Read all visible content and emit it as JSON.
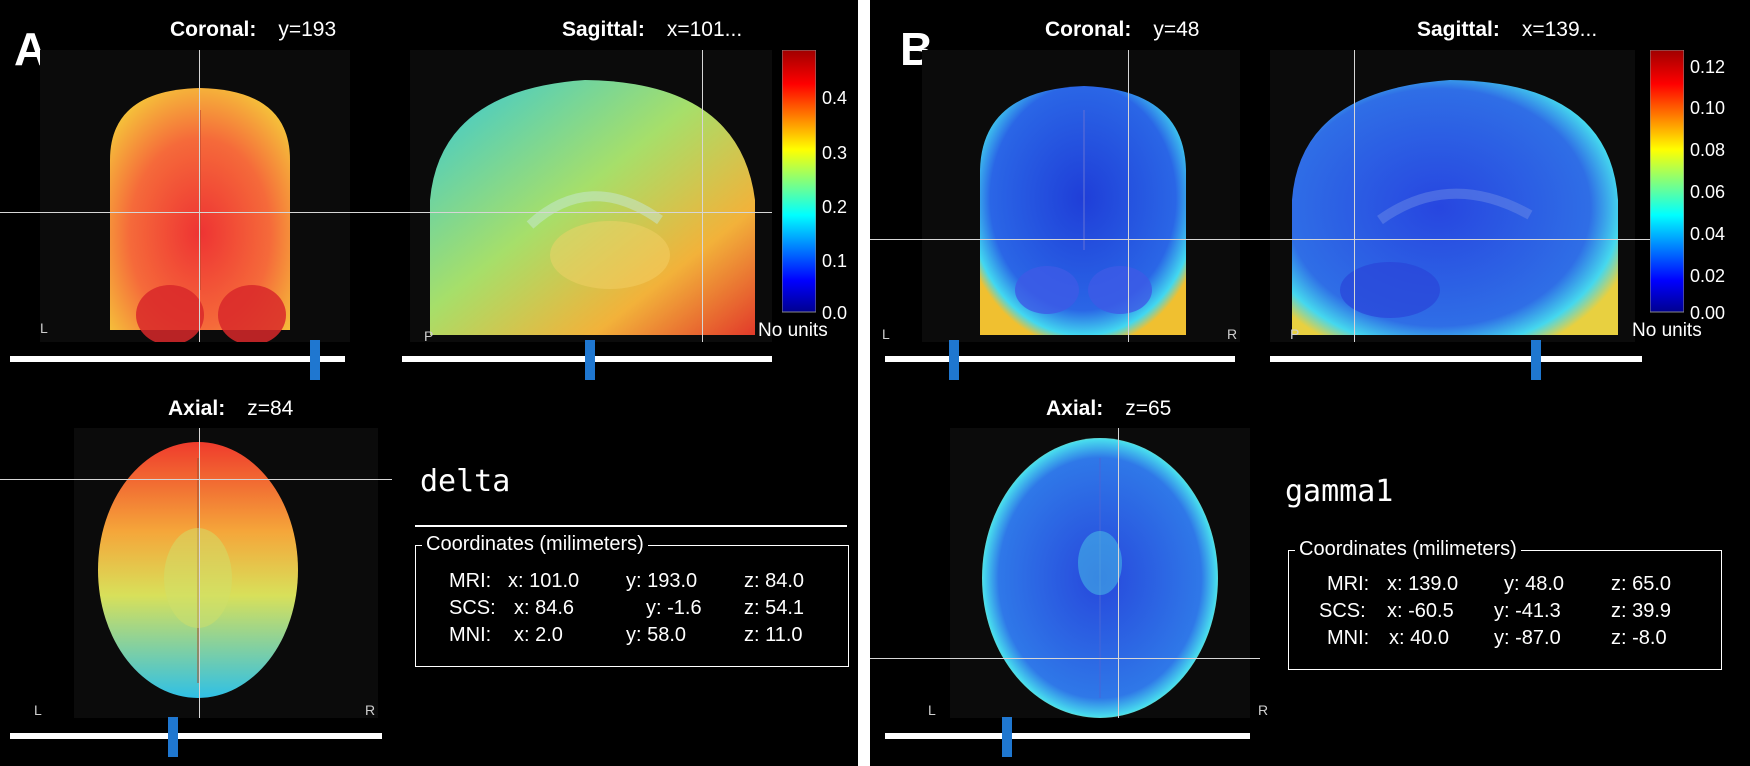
{
  "panels": [
    {
      "letter": "A",
      "coronal": {
        "label": "Coronal:",
        "value": "y=193"
      },
      "sagittal": {
        "label": "Sagittal:",
        "value": "x=101..."
      },
      "axial": {
        "label": "Axial:",
        "value": "z=84"
      },
      "colorbar": {
        "ticks": [
          "0.4",
          "0.3",
          "0.2",
          "0.1",
          "0.0"
        ],
        "units": "No units"
      },
      "band": "delta",
      "orient": {
        "left": "L",
        "right": "R"
      },
      "coords": {
        "title": "Coordinates (milimeters)",
        "rows": [
          {
            "name": "MRI:",
            "x": "x: 101.0",
            "y": "y: 193.0",
            "z": "z: 84.0"
          },
          {
            "name": "SCS:",
            "x": "x: 84.6",
            "y": "y: -1.6",
            "z": "z: 54.1"
          },
          {
            "name": "MNI:",
            "x": "x: 2.0",
            "y": "y: 58.0",
            "z": "z: 11.0"
          }
        ]
      },
      "sliders": {
        "coronal": 0.82,
        "sagittal": 0.5,
        "axial": 0.44
      }
    },
    {
      "letter": "B",
      "coronal": {
        "label": "Coronal:",
        "value": "y=48"
      },
      "sagittal": {
        "label": "Sagittal:",
        "value": "x=139..."
      },
      "axial": {
        "label": "Axial:",
        "value": "z=65"
      },
      "colorbar": {
        "ticks": [
          "0.12",
          "0.10",
          "0.08",
          "0.06",
          "0.04",
          "0.02",
          "0.00"
        ],
        "units": "No units"
      },
      "band": "gamma1",
      "orient": {
        "left": "L",
        "right": "R"
      },
      "coords": {
        "title": "Coordinates (milimeters)",
        "rows": [
          {
            "name": "MRI:",
            "x": "x: 139.0",
            "y": "y: 48.0",
            "z": "z: 65.0"
          },
          {
            "name": "SCS:",
            "x": "x: -60.5",
            "y": "y: -41.3",
            "z": "z: 39.9"
          },
          {
            "name": "MNI:",
            "x": "x: 40.0",
            "y": "y: -87.0",
            "z": "z: -8.0"
          }
        ]
      },
      "sliders": {
        "coronal": 0.18,
        "sagittal": 0.71,
        "axial": 0.33
      }
    }
  ]
}
